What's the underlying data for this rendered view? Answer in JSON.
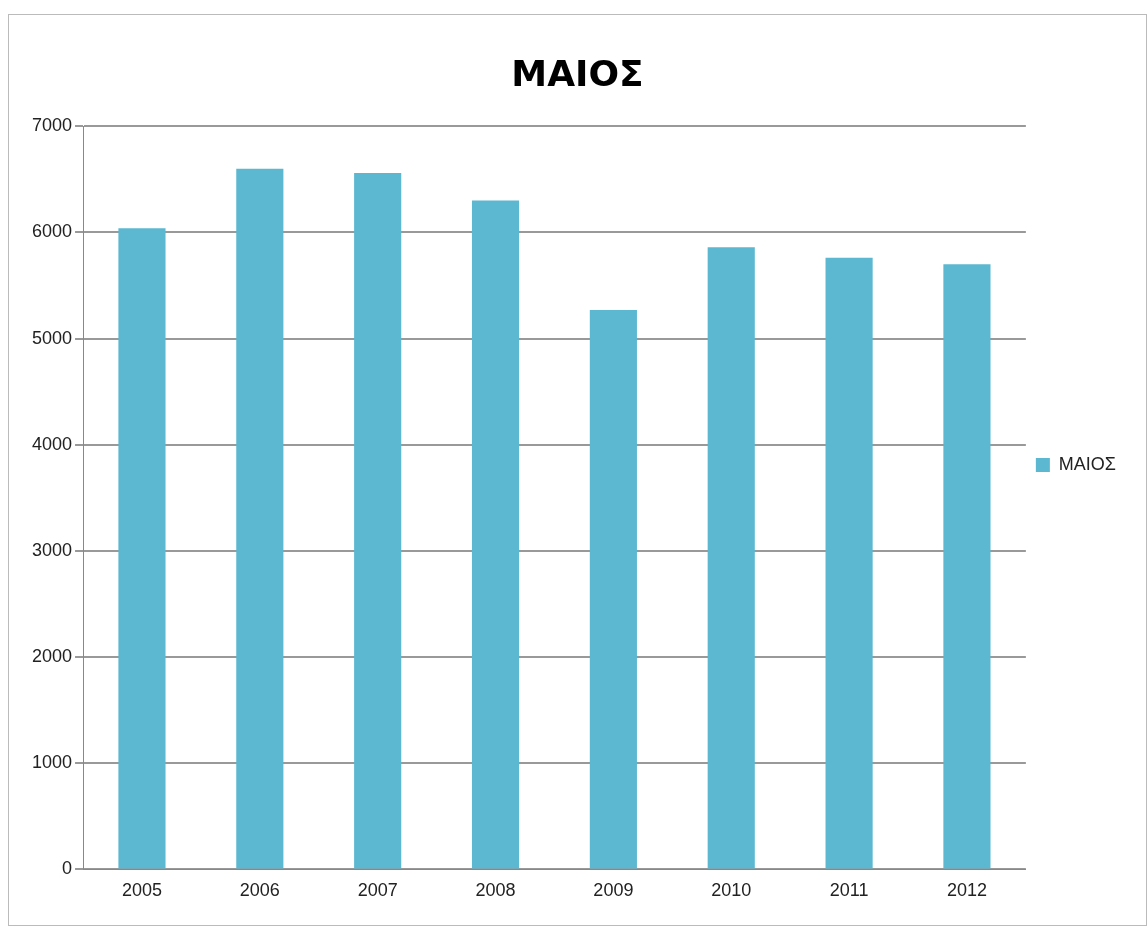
{
  "chart_data": {
    "type": "bar",
    "title": "ΜΑΙΟΣ",
    "categories": [
      "2005",
      "2006",
      "2007",
      "2008",
      "2009",
      "2010",
      "2011",
      "2012"
    ],
    "series": [
      {
        "name": "ΜΑΙΟΣ",
        "color": "#5bb8d0",
        "values": [
          6040,
          6600,
          6560,
          6300,
          5270,
          5860,
          5760,
          5700
        ]
      }
    ],
    "ylim": [
      0,
      7000
    ],
    "yticks": [
      0,
      1000,
      2000,
      3000,
      4000,
      5000,
      6000,
      7000
    ],
    "grid": "y",
    "legend": "right"
  }
}
